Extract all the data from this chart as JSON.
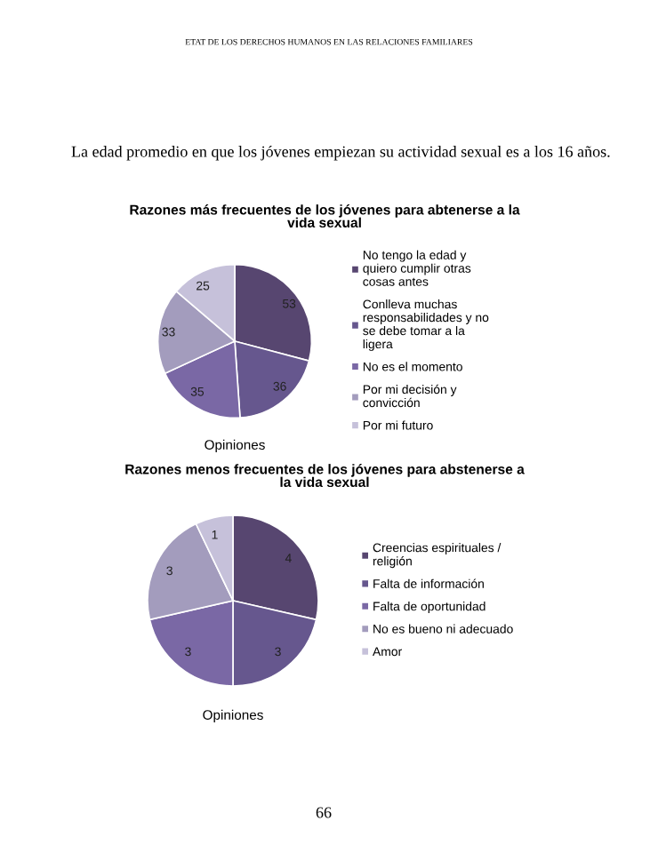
{
  "chart_data": [
    {
      "type": "pie",
      "title": "Razones más frecuentes de los jóvenes para abtenerse a la vida sexual",
      "xlabel": "Opiniones",
      "categories": [
        "No tengo la edad y quiero cumplir otras cosas antes",
        "Conlleva muchas responsabilidades y no se debe tomar a la ligera",
        "No es el momento",
        "Por mi decisión y convicción",
        "Por mi futuro"
      ],
      "values": [
        53,
        36,
        35,
        33,
        25
      ],
      "colors": [
        "#574670",
        "#66578e",
        "#7a68a5",
        "#a39cbd",
        "#c6c1da"
      ],
      "data_labels": true,
      "legend": "right",
      "annotations": [
        "ETAT DE LOS DERECHOS HUMANOS EN LAS RELACIONES FAMILIARES",
        "La edad promedio en que los jóvenes empiezan su actividad sexual es a los 16 años."
      ]
    },
    {
      "type": "pie",
      "title": "Razones menos frecuentes de los jóvenes para abstenerse a la vida sexual",
      "xlabel": "Opiniones",
      "categories": [
        "Creencias espirituales / religión",
        "Falta de información",
        "Falta de oportunidad",
        "No es bueno ni adecuado",
        "Amor"
      ],
      "values": [
        4,
        3,
        3,
        3,
        1
      ],
      "colors": [
        "#574670",
        "#66578e",
        "#7a68a5",
        "#a39cbd",
        "#c6c1da"
      ],
      "data_labels": true,
      "legend": "right",
      "annotations": [
        "66"
      ]
    }
  ]
}
